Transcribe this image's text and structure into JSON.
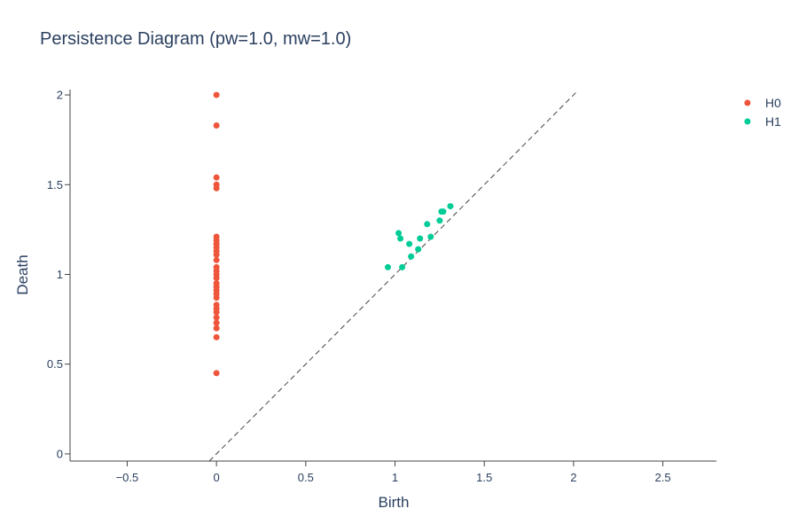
{
  "chart_data": {
    "type": "scatter",
    "title": "Persistence Diagram (pw=1.0, mw=1.0)",
    "xlabel": "Birth",
    "ylabel": "Death",
    "xlim": [
      -0.82,
      2.8
    ],
    "ylim": [
      -0.04,
      2.03
    ],
    "xticks": [
      -0.5,
      0,
      0.5,
      1,
      1.5,
      2,
      2.5
    ],
    "yticks": [
      0,
      0.5,
      1,
      1.5,
      2
    ],
    "xtick_labels": [
      "−0.5",
      "0",
      "0.5",
      "1",
      "1.5",
      "2",
      "2.5"
    ],
    "ytick_labels": [
      "0",
      "0.5",
      "1",
      "1.5",
      "2"
    ],
    "grid": false,
    "legend_position": "top-right",
    "diagonal": {
      "from": [
        -0.04,
        -0.04
      ],
      "to": [
        2.02,
        2.02
      ],
      "color": "#444444",
      "style": "dashed"
    },
    "series": [
      {
        "name": "H0",
        "color": "#EF553B",
        "points": [
          [
            0,
            2.0
          ],
          [
            0,
            1.83
          ],
          [
            0,
            1.54
          ],
          [
            0,
            1.5
          ],
          [
            0,
            1.48
          ],
          [
            0,
            1.21
          ],
          [
            0,
            1.19
          ],
          [
            0,
            1.17
          ],
          [
            0,
            1.15
          ],
          [
            0,
            1.13
          ],
          [
            0,
            1.11
          ],
          [
            0,
            1.08
          ],
          [
            0,
            1.04
          ],
          [
            0,
            1.02
          ],
          [
            0,
            1.0
          ],
          [
            0,
            0.98
          ],
          [
            0,
            0.95
          ],
          [
            0,
            0.93
          ],
          [
            0,
            0.91
          ],
          [
            0,
            0.89
          ],
          [
            0,
            0.87
          ],
          [
            0,
            0.83
          ],
          [
            0,
            0.81
          ],
          [
            0,
            0.79
          ],
          [
            0,
            0.76
          ],
          [
            0,
            0.73
          ],
          [
            0,
            0.7
          ],
          [
            0,
            0.65
          ],
          [
            0,
            0.45
          ]
        ]
      },
      {
        "name": "H1",
        "color": "#00CC96",
        "points": [
          [
            0.96,
            1.04
          ],
          [
            1.02,
            1.23
          ],
          [
            1.03,
            1.2
          ],
          [
            1.04,
            1.04
          ],
          [
            1.08,
            1.17
          ],
          [
            1.09,
            1.1
          ],
          [
            1.13,
            1.14
          ],
          [
            1.14,
            1.2
          ],
          [
            1.18,
            1.28
          ],
          [
            1.2,
            1.21
          ],
          [
            1.25,
            1.3
          ],
          [
            1.26,
            1.35
          ],
          [
            1.27,
            1.35
          ],
          [
            1.31,
            1.38
          ]
        ]
      }
    ]
  }
}
